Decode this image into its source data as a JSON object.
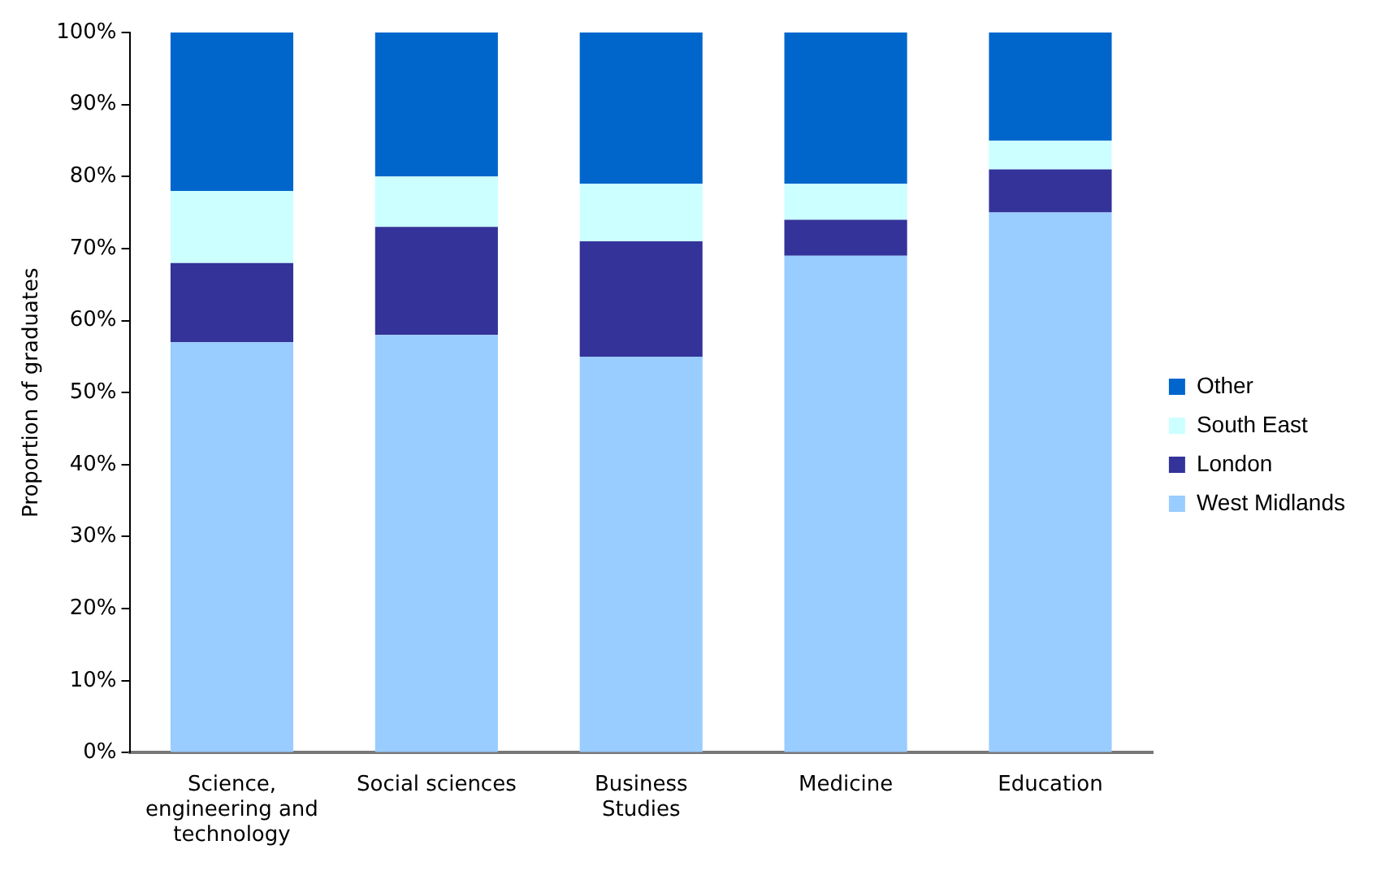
{
  "chart_data": {
    "type": "bar",
    "stacked": true,
    "ylabel": "Proportion of graduates",
    "categories": [
      "Science, engineering and technology",
      "Social sciences",
      "Business Studies",
      "Medicine",
      "Education"
    ],
    "series": [
      {
        "name": "West Midlands",
        "color": "#99ccff",
        "values": [
          57,
          58,
          55,
          69,
          75
        ]
      },
      {
        "name": "London",
        "color": "#333399",
        "values": [
          11,
          15,
          16,
          5,
          6
        ]
      },
      {
        "name": "South East",
        "color": "#ccffff",
        "values": [
          10,
          7,
          8,
          5,
          4
        ]
      },
      {
        "name": "Other",
        "color": "#0066cc",
        "values": [
          22,
          20,
          21,
          21,
          15
        ]
      }
    ],
    "ylim": [
      0,
      100
    ],
    "yticks": [
      {
        "value": 0,
        "label": "0%"
      },
      {
        "value": 10,
        "label": "10%"
      },
      {
        "value": 20,
        "label": "20%"
      },
      {
        "value": 30,
        "label": "30%"
      },
      {
        "value": 40,
        "label": "40%"
      },
      {
        "value": 50,
        "label": "50%"
      },
      {
        "value": 60,
        "label": "60%"
      },
      {
        "value": 70,
        "label": "70%"
      },
      {
        "value": 80,
        "label": "80%"
      },
      {
        "value": 90,
        "label": "90%"
      },
      {
        "value": 100,
        "label": "100%"
      }
    ],
    "grid": false,
    "legend": "right"
  }
}
